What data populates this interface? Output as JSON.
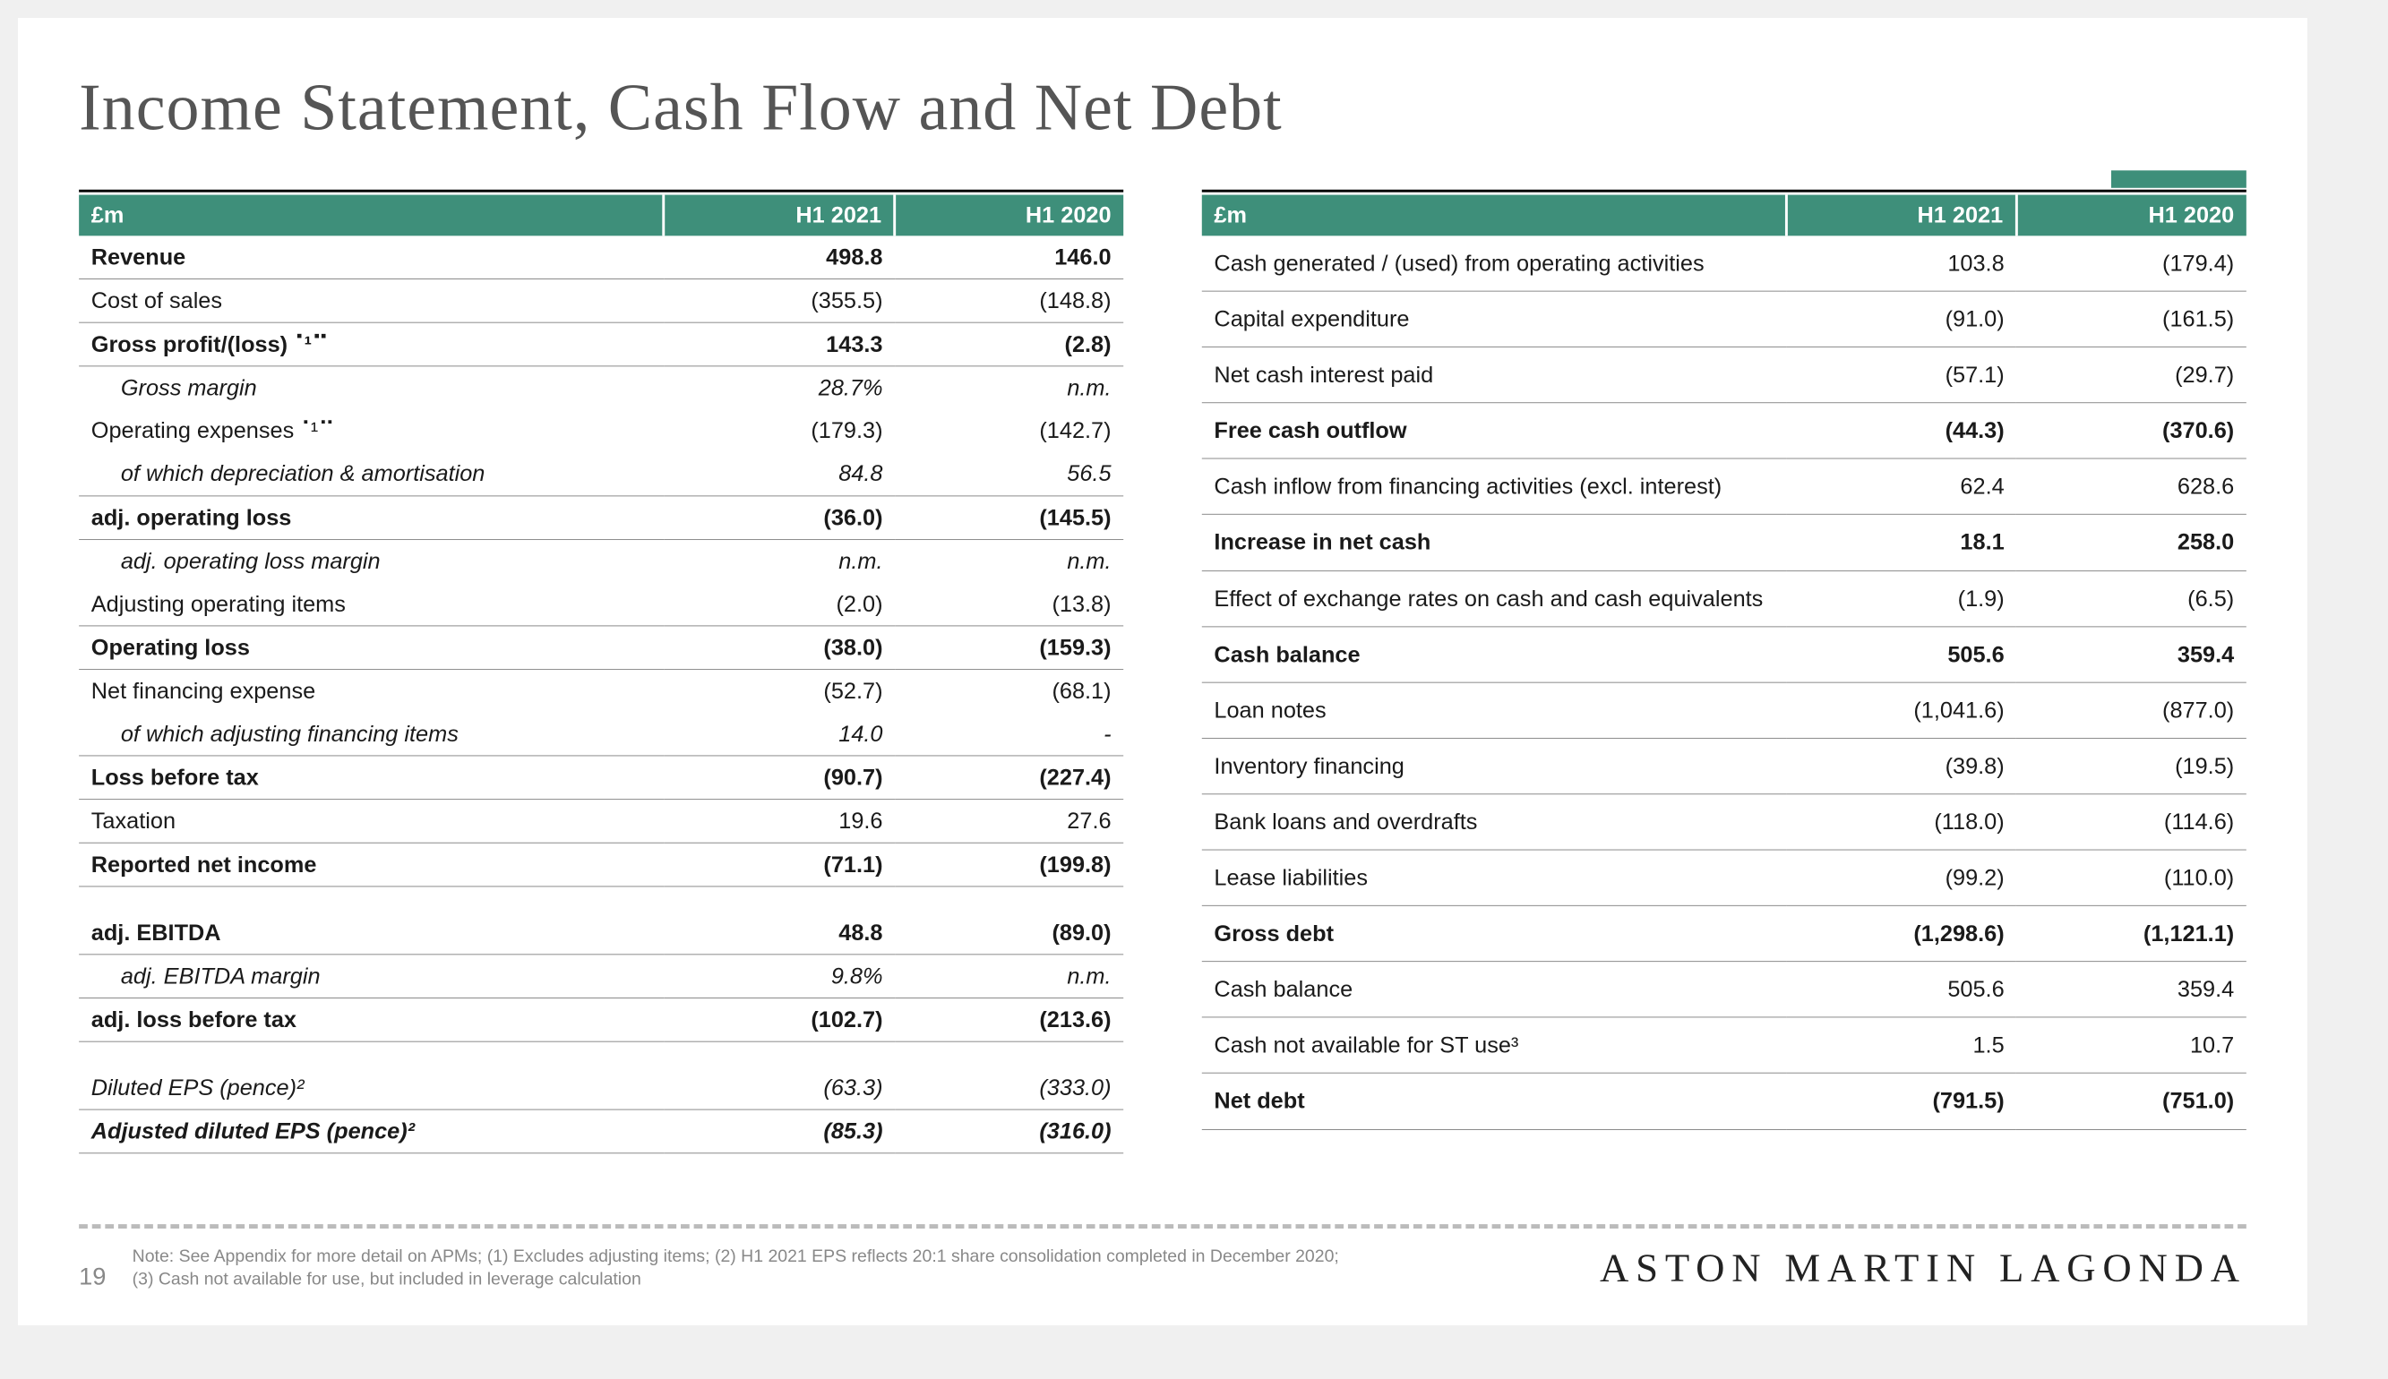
{
  "title": "Income Statement, Cash Flow and Net Debt",
  "page_number": "19",
  "footnote_line1": "Note: See Appendix for more detail on APMs; (1) Excludes adjusting items; (2) H1 2021 EPS reflects 20:1 share consolidation completed in December 2020;",
  "footnote_line2": "(3) Cash not available for use, but included in leverage calculation",
  "logo": "ASTON MARTIN LAGONDA",
  "left_table": {
    "header": [
      "£m",
      "H1 2021",
      "H1 2020"
    ],
    "rows": [
      {
        "label": "Revenue",
        "c1": "498.8",
        "c2": "146.0",
        "bold": true
      },
      {
        "label": "Cost of sales",
        "c1": "(355.5)",
        "c2": "(148.8)"
      },
      {
        "label": "Gross profit/(loss)⠈¹⠉",
        "c1": "143.3",
        "c2": "(2.8)",
        "bold": true
      },
      {
        "label": "Gross margin",
        "c1": "28.7%",
        "c2": "n.m.",
        "italic": true,
        "indent": true,
        "noborder": true
      },
      {
        "label": "Operating expenses⠈¹⠉",
        "c1": "(179.3)",
        "c2": "(142.7)",
        "noborder": true
      },
      {
        "label": "of which depreciation & amortisation",
        "c1": "84.8",
        "c2": "56.5",
        "italic": true,
        "indent": true
      },
      {
        "label": "adj. operating loss",
        "c1": "(36.0)",
        "c2": "(145.5)",
        "bold": true
      },
      {
        "label": "adj. operating loss margin",
        "c1": "n.m.",
        "c2": "n.m.",
        "italic": true,
        "indent": true,
        "noborder": true
      },
      {
        "label": "Adjusting operating items",
        "c1": "(2.0)",
        "c2": "(13.8)"
      },
      {
        "label": "Operating loss",
        "c1": "(38.0)",
        "c2": "(159.3)",
        "bold": true
      },
      {
        "label": "Net financing expense",
        "c1": "(52.7)",
        "c2": "(68.1)",
        "noborder": true
      },
      {
        "label": "of which adjusting financing items",
        "c1": "14.0",
        "c2": "-",
        "italic": true,
        "indent": true
      },
      {
        "label": "Loss before tax",
        "c1": "(90.7)",
        "c2": "(227.4)",
        "bold": true
      },
      {
        "label": "Taxation",
        "c1": "19.6",
        "c2": "27.6"
      },
      {
        "label": "Reported net income",
        "c1": "(71.1)",
        "c2": "(199.8)",
        "bold": true
      },
      {
        "spacer": true
      },
      {
        "label": "adj. EBITDA",
        "c1": "48.8",
        "c2": "(89.0)",
        "bold": true
      },
      {
        "label": "adj. EBITDA margin",
        "c1": "9.8%",
        "c2": "n.m.",
        "italic": true,
        "indent": true
      },
      {
        "label": "adj. loss before tax",
        "c1": "(102.7)",
        "c2": "(213.6)",
        "bold": true
      },
      {
        "spacer": true
      },
      {
        "label": "Diluted EPS (pence)²",
        "c1": "(63.3)",
        "c2": "(333.0)",
        "italic": true
      },
      {
        "label": "Adjusted diluted EPS (pence)²",
        "c1": "(85.3)",
        "c2": "(316.0)",
        "italic": true,
        "bold": true
      }
    ]
  },
  "right_table": {
    "header": [
      "£m",
      "H1 2021",
      "H1 2020"
    ],
    "rows": [
      {
        "label": "Cash generated / (used) from operating activities",
        "c1": "103.8",
        "c2": "(179.4)",
        "tall": true
      },
      {
        "label": "Capital expenditure",
        "c1": "(91.0)",
        "c2": "(161.5)",
        "tall": true
      },
      {
        "label": "Net cash interest paid",
        "c1": "(57.1)",
        "c2": "(29.7)",
        "tall": true
      },
      {
        "label": "Free cash outflow",
        "c1": "(44.3)",
        "c2": "(370.6)",
        "bold": true,
        "tall": true
      },
      {
        "label": "Cash inflow from financing activities (excl. interest)",
        "c1": "62.4",
        "c2": "628.6",
        "tall": true
      },
      {
        "label": "Increase in net cash",
        "c1": "18.1",
        "c2": "258.0",
        "bold": true,
        "tall": true
      },
      {
        "label": "Effect of exchange rates on cash and cash equivalents",
        "c1": "(1.9)",
        "c2": "(6.5)",
        "tall": true
      },
      {
        "label": "Cash balance",
        "c1": "505.6",
        "c2": "359.4",
        "bold": true,
        "tall": true
      },
      {
        "label": "Loan notes",
        "c1": "(1,041.6)",
        "c2": "(877.0)",
        "tall": true
      },
      {
        "label": "Inventory financing",
        "c1": "(39.8)",
        "c2": "(19.5)",
        "tall": true
      },
      {
        "label": "Bank loans and overdrafts",
        "c1": "(118.0)",
        "c2": "(114.6)",
        "tall": true
      },
      {
        "label": "Lease liabilities",
        "c1": "(99.2)",
        "c2": "(110.0)",
        "tall": true
      },
      {
        "label": "Gross debt",
        "c1": "(1,298.6)",
        "c2": "(1,121.1)",
        "bold": true,
        "tall": true
      },
      {
        "label": "Cash balance",
        "c1": "505.6",
        "c2": "359.4",
        "tall": true
      },
      {
        "label": "Cash not available for ST use³",
        "c1": "1.5",
        "c2": "10.7",
        "tall": true
      },
      {
        "label": "Net debt",
        "c1": "(791.5)",
        "c2": "(751.0)",
        "bold": true,
        "tall": true
      }
    ]
  }
}
